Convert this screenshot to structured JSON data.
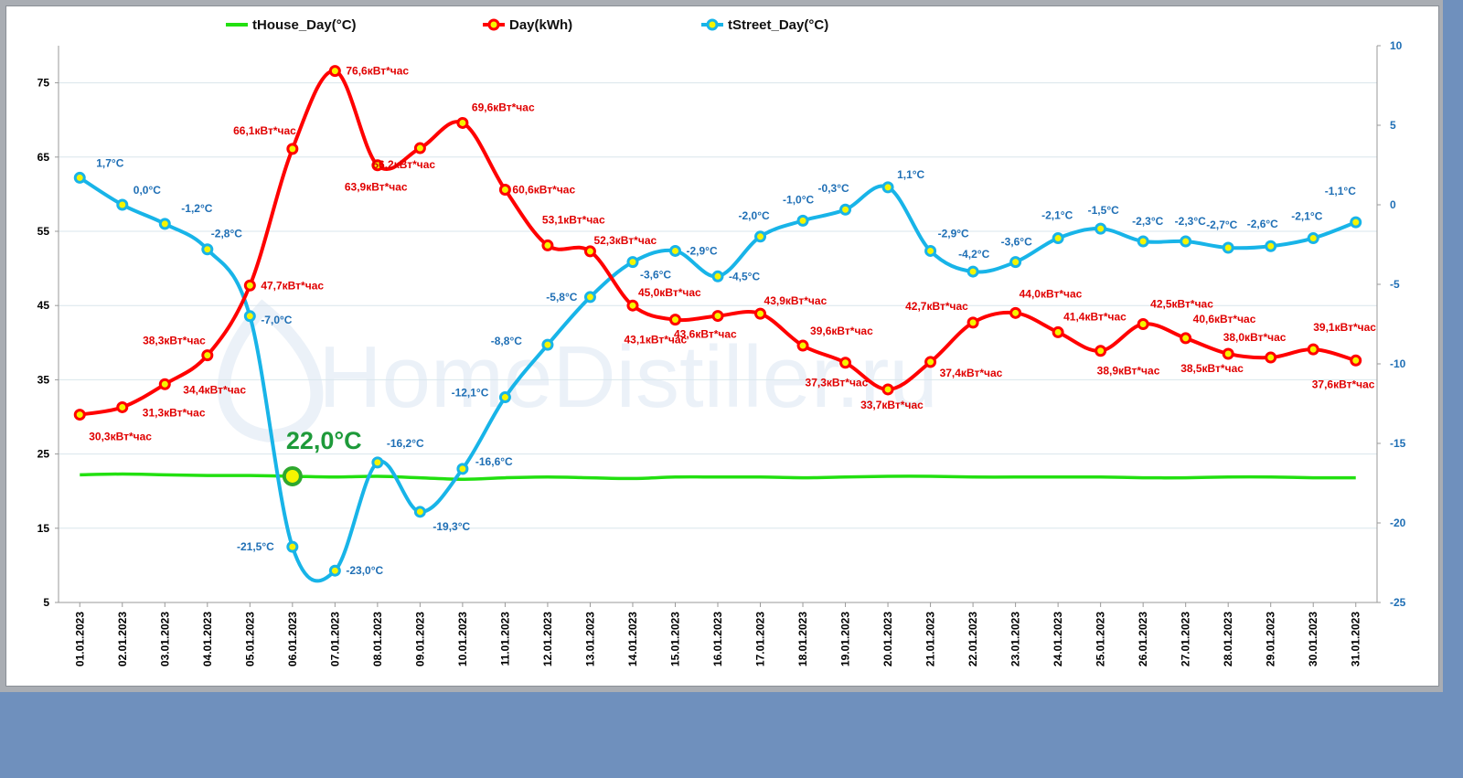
{
  "watermark": "HomeDistiller.ru",
  "house_callout": "22,0°C",
  "colors": {
    "house": "#22e010",
    "kwh": "#ff0000",
    "street": "#18b4e8",
    "marker_fill": "#f5f500",
    "right_axis": "#1f6fb5",
    "background": "#6f90bd"
  },
  "chart_data": {
    "type": "line",
    "legend": [
      "tHouse_Day(°C)",
      "Day(kWh)",
      "tStreet_Day(°C)"
    ],
    "legend_position": "top",
    "categories": [
      "01.01.2023",
      "02.01.2023",
      "03.01.2023",
      "04.01.2023",
      "05.01.2023",
      "06.01.2023",
      "07.01.2023",
      "08.01.2023",
      "09.01.2023",
      "10.01.2023",
      "11.01.2023",
      "12.01.2023",
      "13.01.2023",
      "14.01.2023",
      "15.01.2023",
      "16.01.2023",
      "17.01.2023",
      "18.01.2023",
      "19.01.2023",
      "20.01.2023",
      "21.01.2023",
      "22.01.2023",
      "23.01.2023",
      "24.01.2023",
      "25.01.2023",
      "26.01.2023",
      "27.01.2023",
      "28.01.2023",
      "29.01.2023",
      "30.01.2023",
      "31.01.2023"
    ],
    "left_axis": {
      "min": 5,
      "max": 80,
      "ticks": [
        5,
        15,
        25,
        35,
        45,
        55,
        65,
        75
      ]
    },
    "right_axis": {
      "min": -25,
      "max": 10,
      "ticks": [
        -25,
        -20,
        -15,
        -10,
        -5,
        0,
        5,
        10
      ]
    },
    "grid": "horizontal",
    "series": [
      {
        "name": "tHouse_Day(°C)",
        "axis": "left",
        "markers": false,
        "values": [
          22.2,
          22.3,
          22.2,
          22.1,
          22.1,
          22.0,
          21.9,
          22.0,
          21.8,
          21.6,
          21.8,
          21.9,
          21.8,
          21.7,
          21.9,
          21.9,
          21.9,
          21.8,
          21.9,
          22.0,
          22.0,
          21.9,
          21.9,
          21.9,
          21.9,
          21.8,
          21.8,
          21.9,
          21.9,
          21.8,
          21.8
        ]
      },
      {
        "name": "Day(kWh)",
        "axis": "left",
        "markers": true,
        "values": [
          30.3,
          31.3,
          34.4,
          38.3,
          47.7,
          66.1,
          76.6,
          63.9,
          66.2,
          69.6,
          60.6,
          53.1,
          52.3,
          45.0,
          43.1,
          43.6,
          43.9,
          39.6,
          37.3,
          33.7,
          37.4,
          42.7,
          44.0,
          41.4,
          38.9,
          42.5,
          40.6,
          38.5,
          38.0,
          39.1,
          37.6
        ],
        "labels": [
          "30,3кВт*час",
          "31,3кВт*час",
          "34,4кВт*час",
          "38,3кВт*час",
          "47,7кВт*час",
          "66,1кВт*час",
          "76,6кВт*час",
          "63,9кВт*час",
          "66,2кВт*час",
          "69,6кВт*час",
          "60,6кВт*час",
          "53,1кВт*час",
          "52,3кВт*час",
          "45,0кВт*час",
          "43,1кВт*час",
          "43,6кВт*час",
          "43,9кВт*час",
          "39,6кВт*час",
          "37,3кВт*час",
          "33,7кВт*час",
          "37,4кВт*час",
          "42,7кВт*час",
          "44,0кВт*час",
          "41,4кВт*час",
          "38,9кВт*час",
          "42,5кВт*час",
          "40,6кВт*час",
          "38,5кВт*час",
          "38,0кВт*час",
          "39,1кВт*час",
          "37,6кВт*час"
        ]
      },
      {
        "name": "tStreet_Day(°C)",
        "axis": "right",
        "markers": true,
        "values": [
          1.7,
          0.0,
          -1.2,
          -2.8,
          -7.0,
          -21.5,
          -23.0,
          -16.2,
          -19.3,
          -16.6,
          -12.1,
          -8.8,
          -5.8,
          -3.6,
          -2.9,
          -4.5,
          -2.0,
          -1.0,
          -0.3,
          1.1,
          -2.9,
          -4.2,
          -3.6,
          -2.1,
          -1.5,
          -2.3,
          -2.3,
          -2.7,
          -2.6,
          -2.1,
          -1.1
        ],
        "labels": [
          "1,7°C",
          "0,0°C",
          "-1,2°C",
          "-2,8°C",
          "-7,0°C",
          "-21,5°C",
          "-23,0°C",
          "-16,2°C",
          "-19,3°C",
          "-16,6°C",
          "-12,1°C",
          "-8,8°C",
          "-5,8°C",
          "-3,6°C",
          "-2,9°C",
          "-4,5°C",
          "-2,0°C",
          "-1,0°C",
          "-0,3°C",
          "1,1°C",
          "-2,9°C",
          "-4,2°C",
          "-3,6°C",
          "-2,1°C",
          "-1,5°C",
          "-2,3°C",
          "-2,3°C",
          "-2,7°C",
          "-2,6°C",
          "-2,1°C",
          "-1,1°C"
        ]
      }
    ]
  }
}
